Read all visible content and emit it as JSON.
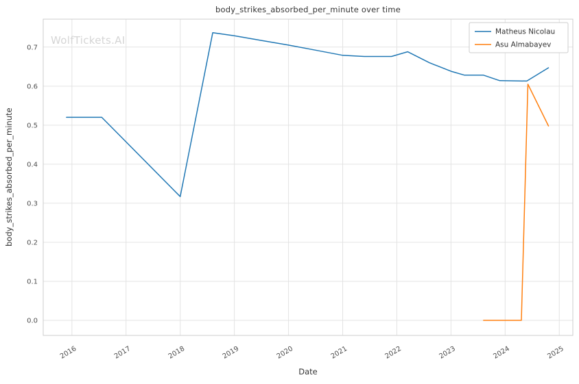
{
  "figure": {
    "title": "body_strikes_absorbed_per_minute over time",
    "xlabel": "Date",
    "ylabel": "body_strikes_absorbed_per_minute",
    "watermark": "WolfTickets.AI"
  },
  "chart_data": {
    "type": "line",
    "title": "body_strikes_absorbed_per_minute over time",
    "xlabel": "Date",
    "ylabel": "body_strikes_absorbed_per_minute",
    "watermark": "WolfTickets.AI",
    "grid": true,
    "legend_position": "upper right",
    "xlim": [
      2015.47,
      2025.25
    ],
    "ylim": [
      -0.0385,
      0.7715
    ],
    "xticks": [
      2016,
      2017,
      2018,
      2019,
      2020,
      2021,
      2022,
      2023,
      2024,
      2025
    ],
    "yticks": [
      0.0,
      0.1,
      0.2,
      0.3,
      0.4,
      0.5,
      0.6,
      0.7
    ],
    "colors": {
      "grid": "#e3e3e3",
      "spine": "#cccccc",
      "tick_label": "#4d4d4d",
      "legend_border": "#cccccc",
      "legend_text": "#333333"
    },
    "series": [
      {
        "name": "Matheus Nicolau",
        "color": "#1f77b4",
        "points": [
          [
            2015.9,
            0.52
          ],
          [
            2016.55,
            0.52
          ],
          [
            2018.0,
            0.317
          ],
          [
            2018.6,
            0.737
          ],
          [
            2019.0,
            0.729
          ],
          [
            2019.5,
            0.717
          ],
          [
            2020.0,
            0.705
          ],
          [
            2020.5,
            0.692
          ],
          [
            2021.0,
            0.679
          ],
          [
            2021.4,
            0.676
          ],
          [
            2021.9,
            0.676
          ],
          [
            2022.2,
            0.688
          ],
          [
            2022.6,
            0.66
          ],
          [
            2023.0,
            0.638
          ],
          [
            2023.25,
            0.628
          ],
          [
            2023.6,
            0.628
          ],
          [
            2023.9,
            0.614
          ],
          [
            2024.4,
            0.613
          ],
          [
            2024.8,
            0.647
          ]
        ]
      },
      {
        "name": "Asu Almabayev",
        "color": "#ff7f0e",
        "points": [
          [
            2023.6,
            0.0
          ],
          [
            2024.3,
            0.0
          ],
          [
            2024.42,
            0.605
          ],
          [
            2024.8,
            0.498
          ]
        ]
      }
    ]
  }
}
